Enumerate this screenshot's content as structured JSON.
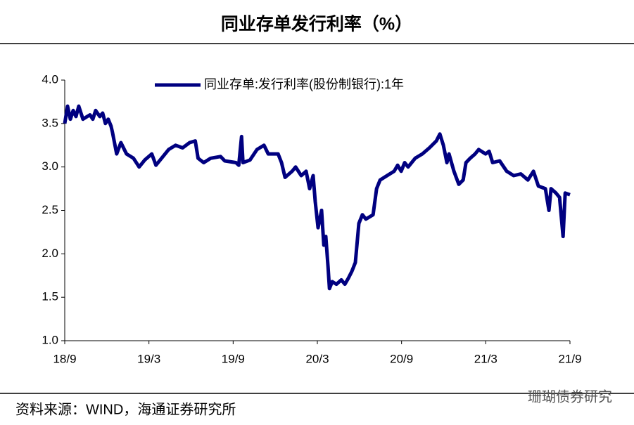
{
  "chart_data": {
    "type": "line",
    "title": "同业存单发行利率（%）",
    "source": "资料来源：WIND，海通证券研究所",
    "watermark": "珊瑚债券研究",
    "xlim": [
      0,
      36
    ],
    "xticks": [
      {
        "value": 0,
        "label": "18/9"
      },
      {
        "value": 6,
        "label": "19/3"
      },
      {
        "value": 12,
        "label": "19/9"
      },
      {
        "value": 18,
        "label": "20/3"
      },
      {
        "value": 24,
        "label": "20/9"
      },
      {
        "value": 30,
        "label": "21/3"
      },
      {
        "value": 36,
        "label": "21/9"
      }
    ],
    "ylim": [
      1.0,
      4.0
    ],
    "yticks": [
      {
        "value": 1.0,
        "label": "1.0"
      },
      {
        "value": 1.5,
        "label": "1.5"
      },
      {
        "value": 2.0,
        "label": "2.0"
      },
      {
        "value": 2.5,
        "label": "2.5"
      },
      {
        "value": 3.0,
        "label": "3.0"
      },
      {
        "value": 3.5,
        "label": "3.5"
      },
      {
        "value": 4.0,
        "label": "4.0"
      }
    ],
    "grid": false,
    "legend": "top",
    "series": [
      {
        "name": "同业存单:发行利率(股份制银行):1年",
        "color": "#000080",
        "x": [
          0,
          0.2,
          0.4,
          0.6,
          0.8,
          1.0,
          1.3,
          1.6,
          1.8,
          2.0,
          2.2,
          2.5,
          2.7,
          2.9,
          3.1,
          3.3,
          3.4,
          3.7,
          4.0,
          4.4,
          4.9,
          5.3,
          5.7,
          6.2,
          6.5,
          6.9,
          7.4,
          7.9,
          8.4,
          8.9,
          9.3,
          9.5,
          9.9,
          10.4,
          11.1,
          11.4,
          12.2,
          12.4,
          12.6,
          12.7,
          13.2,
          13.7,
          14.2,
          14.5,
          15.2,
          15.45,
          15.7,
          16.2,
          16.45,
          16.85,
          17.2,
          17.45,
          17.7,
          17.85,
          18.05,
          18.3,
          18.46,
          18.6,
          18.76,
          18.86,
          19.06,
          19.36,
          19.71,
          19.96,
          20.21,
          20.46,
          20.71,
          20.96,
          21.21,
          21.46,
          21.97,
          22.22,
          22.47,
          22.97,
          23.47,
          23.72,
          23.97,
          24.22,
          24.47,
          24.97,
          25.48,
          25.98,
          26.48,
          26.73,
          26.98,
          27.23,
          27.38,
          27.73,
          28.08,
          28.39,
          28.59,
          28.89,
          29.24,
          29.49,
          29.99,
          30.24,
          30.49,
          30.99,
          31.49,
          31.99,
          32.5,
          33.0,
          33.4,
          33.75,
          34.25,
          34.5,
          34.65,
          35.0,
          35.26,
          35.51,
          35.66,
          36.0
        ],
        "values": [
          3.5,
          3.7,
          3.55,
          3.65,
          3.58,
          3.7,
          3.55,
          3.58,
          3.6,
          3.55,
          3.65,
          3.58,
          3.62,
          3.5,
          3.55,
          3.47,
          3.4,
          3.15,
          3.28,
          3.15,
          3.1,
          3.0,
          3.08,
          3.15,
          3.02,
          3.1,
          3.2,
          3.25,
          3.22,
          3.28,
          3.3,
          3.1,
          3.05,
          3.1,
          3.12,
          3.07,
          3.05,
          3.02,
          3.35,
          3.05,
          3.08,
          3.2,
          3.25,
          3.15,
          3.15,
          3.05,
          2.88,
          2.95,
          3.0,
          2.9,
          2.95,
          2.75,
          2.9,
          2.6,
          2.3,
          2.5,
          2.1,
          2.2,
          1.85,
          1.6,
          1.68,
          1.65,
          1.7,
          1.65,
          1.72,
          1.8,
          1.9,
          2.35,
          2.45,
          2.4,
          2.45,
          2.75,
          2.85,
          2.9,
          2.95,
          3.02,
          2.95,
          3.05,
          3.0,
          3.1,
          3.15,
          3.22,
          3.3,
          3.38,
          3.25,
          3.05,
          3.15,
          2.95,
          2.8,
          2.85,
          3.05,
          3.1,
          3.15,
          3.2,
          3.15,
          3.18,
          3.05,
          3.07,
          2.95,
          2.9,
          2.92,
          2.85,
          2.95,
          2.78,
          2.75,
          2.5,
          2.75,
          2.7,
          2.65,
          2.2,
          2.7,
          2.68
        ]
      }
    ]
  }
}
